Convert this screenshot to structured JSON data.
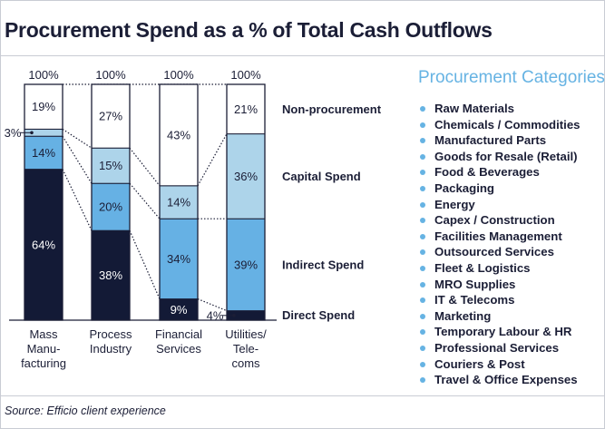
{
  "title": "Procurement Spend as a % of Total Cash Outflows",
  "source": "Source: Efficio client experience",
  "colors": {
    "direct": "#131a36",
    "indirect": "#66b1e4",
    "capital": "#add4ea",
    "non_procurement": "#ffffff",
    "accent": "#66b3e3",
    "text": "#1b1e36"
  },
  "categories_panel": {
    "title": "Procurement Categories",
    "items": [
      "Raw Materials",
      "Chemicals / Commodities",
      "Manufactured Parts",
      "Goods for Resale (Retail)",
      "Food & Beverages",
      "Packaging",
      "Energy",
      "Capex / Construction",
      "Facilities Management",
      "Outsourced Services",
      "Fleet & Logistics",
      "MRO Supplies",
      "IT & Telecoms",
      "Marketing",
      "Temporary Labour & HR",
      "Professional Services",
      "Couriers & Post",
      "Travel & Office Expenses"
    ]
  },
  "chart_data": {
    "type": "bar",
    "stacked": true,
    "title": "Procurement Spend as a % of Total Cash Outflows",
    "categories": [
      [
        "Mass",
        "Manu-",
        "facturing"
      ],
      [
        "Process",
        "Industry"
      ],
      [
        "Financial",
        "Services"
      ],
      [
        "Utilities/",
        "Tele-",
        "coms"
      ]
    ],
    "totals": [
      "100%",
      "100%",
      "100%",
      "100%"
    ],
    "series": [
      {
        "name": "Direct Spend",
        "key": "direct",
        "values": [
          64,
          38,
          9,
          4
        ]
      },
      {
        "name": "Indirect Spend",
        "key": "indirect",
        "values": [
          14,
          20,
          34,
          39
        ]
      },
      {
        "name": "Capital Spend",
        "key": "capital",
        "values": [
          3,
          15,
          14,
          36
        ]
      },
      {
        "name": "Non-procurement",
        "key": "non_procurement",
        "values": [
          19,
          27,
          43,
          21
        ]
      }
    ],
    "ylim": [
      0,
      100
    ],
    "series_labels_position": "right of last bar"
  }
}
